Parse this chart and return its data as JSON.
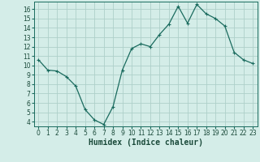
{
  "x": [
    0,
    1,
    2,
    3,
    4,
    5,
    6,
    7,
    8,
    9,
    10,
    11,
    12,
    13,
    14,
    15,
    16,
    17,
    18,
    19,
    20,
    21,
    22,
    23
  ],
  "y": [
    10.6,
    9.5,
    9.4,
    8.8,
    7.8,
    5.3,
    4.2,
    3.7,
    5.6,
    9.5,
    11.8,
    12.3,
    12.0,
    13.3,
    14.4,
    16.3,
    14.5,
    16.5,
    15.5,
    15.0,
    14.2,
    11.4,
    10.6,
    10.2
  ],
  "line_color": "#1a6b5e",
  "marker": "+",
  "marker_size": 3,
  "linewidth": 0.9,
  "bg_color": "#d4ede8",
  "grid_color": "#aed0ca",
  "xlabel": "Humidex (Indice chaleur)",
  "xlim": [
    -0.5,
    23.5
  ],
  "ylim": [
    3.5,
    16.8
  ],
  "yticks": [
    4,
    5,
    6,
    7,
    8,
    9,
    10,
    11,
    12,
    13,
    14,
    15,
    16
  ],
  "xticks": [
    0,
    1,
    2,
    3,
    4,
    5,
    6,
    7,
    8,
    9,
    10,
    11,
    12,
    13,
    14,
    15,
    16,
    17,
    18,
    19,
    20,
    21,
    22,
    23
  ],
  "tick_fontsize": 5.5,
  "xlabel_fontsize": 7.0,
  "tick_color": "#1a4a3a",
  "axis_color": "#1a6b5e"
}
